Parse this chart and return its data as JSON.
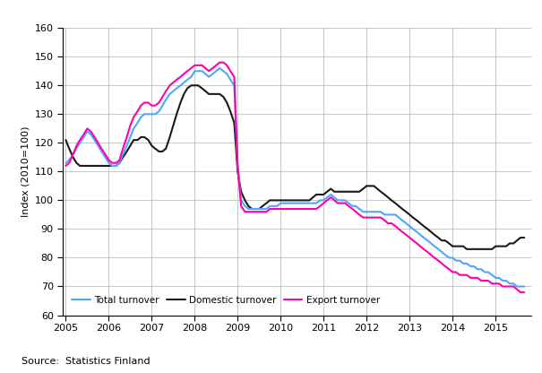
{
  "title": "",
  "ylabel": "Index (2010=100)",
  "xlabel": "",
  "source_text": "Source:  Statistics Finland",
  "ylim": [
    60,
    160
  ],
  "yticks": [
    60,
    70,
    80,
    90,
    100,
    110,
    120,
    130,
    140,
    150,
    160
  ],
  "xlim_start": 2004.92,
  "xlim_end": 2015.83,
  "xtick_labels": [
    "2005",
    "2006",
    "2007",
    "2008",
    "2009",
    "2010",
    "2011",
    "2012",
    "2013",
    "2014",
    "2015"
  ],
  "colors": {
    "total": "#4da6ff",
    "domestic": "#1a1a1a",
    "export": "#ff00aa"
  },
  "linewidths": {
    "total": 1.5,
    "domestic": 1.5,
    "export": 1.5
  },
  "legend_labels": [
    "Total turnover",
    "Domestic turnover",
    "Export turnover"
  ],
  "total_turnover": {
    "x": [
      2005.0,
      2005.08,
      2005.17,
      2005.25,
      2005.33,
      2005.42,
      2005.5,
      2005.58,
      2005.67,
      2005.75,
      2005.83,
      2005.92,
      2006.0,
      2006.08,
      2006.17,
      2006.25,
      2006.33,
      2006.42,
      2006.5,
      2006.58,
      2006.67,
      2006.75,
      2006.83,
      2006.92,
      2007.0,
      2007.08,
      2007.17,
      2007.25,
      2007.33,
      2007.42,
      2007.5,
      2007.58,
      2007.67,
      2007.75,
      2007.83,
      2007.92,
      2008.0,
      2008.08,
      2008.17,
      2008.25,
      2008.33,
      2008.42,
      2008.5,
      2008.58,
      2008.67,
      2008.75,
      2008.83,
      2008.92,
      2009.0,
      2009.08,
      2009.17,
      2009.25,
      2009.33,
      2009.42,
      2009.5,
      2009.58,
      2009.67,
      2009.75,
      2009.83,
      2009.92,
      2010.0,
      2010.08,
      2010.17,
      2010.25,
      2010.33,
      2010.42,
      2010.5,
      2010.58,
      2010.67,
      2010.75,
      2010.83,
      2010.92,
      2011.0,
      2011.08,
      2011.17,
      2011.25,
      2011.33,
      2011.42,
      2011.5,
      2011.58,
      2011.67,
      2011.75,
      2011.83,
      2011.92,
      2012.0,
      2012.08,
      2012.17,
      2012.25,
      2012.33,
      2012.42,
      2012.5,
      2012.58,
      2012.67,
      2012.75,
      2012.83,
      2012.92,
      2013.0,
      2013.08,
      2013.17,
      2013.25,
      2013.33,
      2013.42,
      2013.5,
      2013.58,
      2013.67,
      2013.75,
      2013.83,
      2013.92,
      2014.0,
      2014.08,
      2014.17,
      2014.25,
      2014.33,
      2014.42,
      2014.5,
      2014.58,
      2014.67,
      2014.75,
      2014.83,
      2014.92,
      2015.0,
      2015.08,
      2015.17,
      2015.25,
      2015.33,
      2015.42,
      2015.5,
      2015.58,
      2015.67
    ],
    "y": [
      113,
      114,
      116,
      118,
      120,
      122,
      124,
      123,
      121,
      119,
      117,
      115,
      113,
      112,
      112,
      113,
      116,
      119,
      122,
      125,
      127,
      129,
      130,
      130,
      130,
      130,
      131,
      133,
      135,
      137,
      138,
      139,
      140,
      141,
      142,
      143,
      145,
      145,
      145,
      144,
      143,
      144,
      145,
      146,
      145,
      144,
      142,
      140,
      112,
      100,
      98,
      97,
      97,
      97,
      97,
      97,
      97,
      98,
      98,
      98,
      99,
      99,
      99,
      99,
      99,
      99,
      99,
      99,
      99,
      99,
      99,
      100,
      100,
      101,
      102,
      101,
      100,
      100,
      100,
      99,
      98,
      98,
      97,
      96,
      96,
      96,
      96,
      96,
      96,
      95,
      95,
      95,
      95,
      94,
      93,
      92,
      91,
      90,
      89,
      88,
      87,
      86,
      85,
      84,
      83,
      82,
      81,
      80,
      80,
      79,
      79,
      78,
      78,
      77,
      77,
      76,
      76,
      75,
      75,
      74,
      73,
      73,
      72,
      72,
      71,
      71,
      70,
      70,
      70
    ]
  },
  "domestic_turnover": {
    "x": [
      2005.0,
      2005.08,
      2005.17,
      2005.25,
      2005.33,
      2005.42,
      2005.5,
      2005.58,
      2005.67,
      2005.75,
      2005.83,
      2005.92,
      2006.0,
      2006.08,
      2006.17,
      2006.25,
      2006.33,
      2006.42,
      2006.5,
      2006.58,
      2006.67,
      2006.75,
      2006.83,
      2006.92,
      2007.0,
      2007.08,
      2007.17,
      2007.25,
      2007.33,
      2007.42,
      2007.5,
      2007.58,
      2007.67,
      2007.75,
      2007.83,
      2007.92,
      2008.0,
      2008.08,
      2008.17,
      2008.25,
      2008.33,
      2008.42,
      2008.5,
      2008.58,
      2008.67,
      2008.75,
      2008.83,
      2008.92,
      2009.0,
      2009.08,
      2009.17,
      2009.25,
      2009.33,
      2009.42,
      2009.5,
      2009.58,
      2009.67,
      2009.75,
      2009.83,
      2009.92,
      2010.0,
      2010.08,
      2010.17,
      2010.25,
      2010.33,
      2010.42,
      2010.5,
      2010.58,
      2010.67,
      2010.75,
      2010.83,
      2010.92,
      2011.0,
      2011.08,
      2011.17,
      2011.25,
      2011.33,
      2011.42,
      2011.5,
      2011.58,
      2011.67,
      2011.75,
      2011.83,
      2011.92,
      2012.0,
      2012.08,
      2012.17,
      2012.25,
      2012.33,
      2012.42,
      2012.5,
      2012.58,
      2012.67,
      2012.75,
      2012.83,
      2012.92,
      2013.0,
      2013.08,
      2013.17,
      2013.25,
      2013.33,
      2013.42,
      2013.5,
      2013.58,
      2013.67,
      2013.75,
      2013.83,
      2013.92,
      2014.0,
      2014.08,
      2014.17,
      2014.25,
      2014.33,
      2014.42,
      2014.5,
      2014.58,
      2014.67,
      2014.75,
      2014.83,
      2014.92,
      2015.0,
      2015.08,
      2015.17,
      2015.25,
      2015.33,
      2015.42,
      2015.5,
      2015.58,
      2015.67
    ],
    "y": [
      121,
      118,
      115,
      113,
      112,
      112,
      112,
      112,
      112,
      112,
      112,
      112,
      112,
      112,
      112,
      113,
      115,
      117,
      119,
      121,
      121,
      122,
      122,
      121,
      119,
      118,
      117,
      117,
      118,
      122,
      126,
      130,
      134,
      137,
      139,
      140,
      140,
      140,
      139,
      138,
      137,
      137,
      137,
      137,
      136,
      134,
      131,
      127,
      110,
      103,
      100,
      98,
      97,
      97,
      97,
      98,
      99,
      100,
      100,
      100,
      100,
      100,
      100,
      100,
      100,
      100,
      100,
      100,
      100,
      101,
      102,
      102,
      102,
      103,
      104,
      103,
      103,
      103,
      103,
      103,
      103,
      103,
      103,
      104,
      105,
      105,
      105,
      104,
      103,
      102,
      101,
      100,
      99,
      98,
      97,
      96,
      95,
      94,
      93,
      92,
      91,
      90,
      89,
      88,
      87,
      86,
      86,
      85,
      84,
      84,
      84,
      84,
      83,
      83,
      83,
      83,
      83,
      83,
      83,
      83,
      84,
      84,
      84,
      84,
      85,
      85,
      86,
      87,
      87
    ]
  },
  "export_turnover": {
    "x": [
      2005.0,
      2005.08,
      2005.17,
      2005.25,
      2005.33,
      2005.42,
      2005.5,
      2005.58,
      2005.67,
      2005.75,
      2005.83,
      2005.92,
      2006.0,
      2006.08,
      2006.17,
      2006.25,
      2006.33,
      2006.42,
      2006.5,
      2006.58,
      2006.67,
      2006.75,
      2006.83,
      2006.92,
      2007.0,
      2007.08,
      2007.17,
      2007.25,
      2007.33,
      2007.42,
      2007.5,
      2007.58,
      2007.67,
      2007.75,
      2007.83,
      2007.92,
      2008.0,
      2008.08,
      2008.17,
      2008.25,
      2008.33,
      2008.42,
      2008.5,
      2008.58,
      2008.67,
      2008.75,
      2008.83,
      2008.92,
      2009.0,
      2009.08,
      2009.17,
      2009.25,
      2009.33,
      2009.42,
      2009.5,
      2009.58,
      2009.67,
      2009.75,
      2009.83,
      2009.92,
      2010.0,
      2010.08,
      2010.17,
      2010.25,
      2010.33,
      2010.42,
      2010.5,
      2010.58,
      2010.67,
      2010.75,
      2010.83,
      2010.92,
      2011.0,
      2011.08,
      2011.17,
      2011.25,
      2011.33,
      2011.42,
      2011.5,
      2011.58,
      2011.67,
      2011.75,
      2011.83,
      2011.92,
      2012.0,
      2012.08,
      2012.17,
      2012.25,
      2012.33,
      2012.42,
      2012.5,
      2012.58,
      2012.67,
      2012.75,
      2012.83,
      2012.92,
      2013.0,
      2013.08,
      2013.17,
      2013.25,
      2013.33,
      2013.42,
      2013.5,
      2013.58,
      2013.67,
      2013.75,
      2013.83,
      2013.92,
      2014.0,
      2014.08,
      2014.17,
      2014.25,
      2014.33,
      2014.42,
      2014.5,
      2014.58,
      2014.67,
      2014.75,
      2014.83,
      2014.92,
      2015.0,
      2015.08,
      2015.17,
      2015.25,
      2015.33,
      2015.42,
      2015.5,
      2015.58,
      2015.67
    ],
    "y": [
      112,
      113,
      116,
      119,
      121,
      123,
      125,
      124,
      122,
      120,
      118,
      116,
      114,
      113,
      113,
      114,
      118,
      122,
      126,
      129,
      131,
      133,
      134,
      134,
      133,
      133,
      134,
      136,
      138,
      140,
      141,
      142,
      143,
      144,
      145,
      146,
      147,
      147,
      147,
      146,
      145,
      146,
      147,
      148,
      148,
      147,
      145,
      143,
      112,
      98,
      96,
      96,
      96,
      96,
      96,
      96,
      96,
      97,
      97,
      97,
      97,
      97,
      97,
      97,
      97,
      97,
      97,
      97,
      97,
      97,
      97,
      98,
      99,
      100,
      101,
      100,
      99,
      99,
      99,
      98,
      97,
      96,
      95,
      94,
      94,
      94,
      94,
      94,
      94,
      93,
      92,
      92,
      91,
      90,
      89,
      88,
      87,
      86,
      85,
      84,
      83,
      82,
      81,
      80,
      79,
      78,
      77,
      76,
      75,
      75,
      74,
      74,
      74,
      73,
      73,
      73,
      72,
      72,
      72,
      71,
      71,
      71,
      70,
      70,
      70,
      70,
      69,
      68,
      68
    ]
  }
}
